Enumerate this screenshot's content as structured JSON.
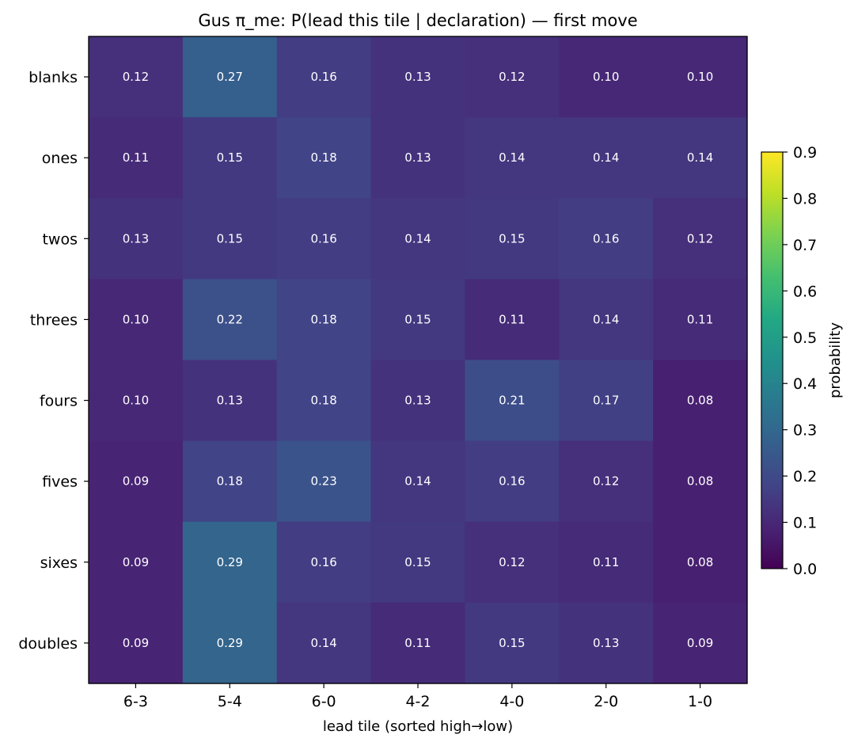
{
  "chart_data": {
    "type": "heatmap",
    "title": "Gus π_me: P(lead this tile | declaration) — first move",
    "xlabel": "lead tile (sorted high→low)",
    "ylabel": "",
    "x_categories": [
      "6-3",
      "5-4",
      "6-0",
      "4-2",
      "4-0",
      "2-0",
      "1-0"
    ],
    "y_categories": [
      "blanks",
      "ones",
      "twos",
      "threes",
      "fours",
      "fives",
      "sixes",
      "doubles"
    ],
    "values": [
      [
        0.12,
        0.27,
        0.16,
        0.13,
        0.12,
        0.1,
        0.1
      ],
      [
        0.11,
        0.15,
        0.18,
        0.13,
        0.14,
        0.14,
        0.14
      ],
      [
        0.13,
        0.15,
        0.16,
        0.14,
        0.15,
        0.16,
        0.12
      ],
      [
        0.1,
        0.22,
        0.18,
        0.15,
        0.11,
        0.14,
        0.11
      ],
      [
        0.1,
        0.13,
        0.18,
        0.13,
        0.21,
        0.17,
        0.08
      ],
      [
        0.09,
        0.18,
        0.23,
        0.14,
        0.16,
        0.12,
        0.08
      ],
      [
        0.09,
        0.29,
        0.16,
        0.15,
        0.12,
        0.11,
        0.08
      ],
      [
        0.09,
        0.29,
        0.14,
        0.11,
        0.15,
        0.13,
        0.09
      ]
    ],
    "colormap": "viridis",
    "vmin": 0.0,
    "vmax": 0.9,
    "colorbar": {
      "label": "probability",
      "ticks": [
        "0.0",
        "0.1",
        "0.2",
        "0.3",
        "0.4",
        "0.5",
        "0.6",
        "0.7",
        "0.8",
        "0.9"
      ]
    },
    "cell_text_color": "#ffffff",
    "axis_color": "#000000"
  }
}
